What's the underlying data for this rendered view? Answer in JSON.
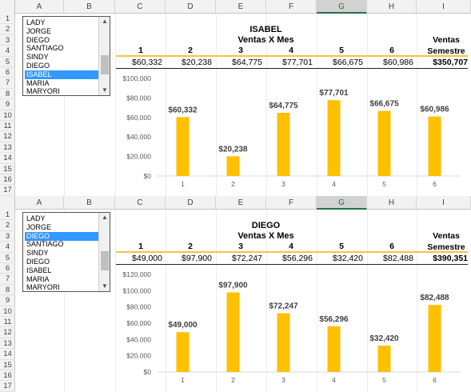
{
  "columns": [
    "A",
    "B",
    "C",
    "D",
    "E",
    "F",
    "G",
    "H",
    "I"
  ],
  "rows": [
    "1",
    "2",
    "3",
    "4",
    "5",
    "6",
    "7",
    "8",
    "9",
    "10",
    "11",
    "12",
    "13",
    "14",
    "15",
    "16",
    "17"
  ],
  "panels": [
    {
      "listbox": {
        "items": [
          "LADY",
          "JORGE",
          "DIEGO",
          "SANTIAGO",
          "SINDY",
          "DIEGO",
          "ISABEL",
          "MARIA",
          "MARYORI"
        ],
        "selected_index": 6
      },
      "title": "ISABEL",
      "subtitle": "Ventas X Mes",
      "months": [
        "1",
        "2",
        "3",
        "4",
        "5",
        "6"
      ],
      "values": [
        "$60,332",
        "$20,238",
        "$64,775",
        "$77,701",
        "$66,675",
        "$60,986"
      ],
      "total_label_line1": "Ventas",
      "total_label_line2": "Semestre",
      "total_value": "$350,707"
    },
    {
      "listbox": {
        "items": [
          "LADY",
          "JORGE",
          "DIEGO",
          "SANTIAGO",
          "SINDY",
          "DIEGO",
          "ISABEL",
          "MARIA",
          "MARYORI"
        ],
        "selected_index": 2
      },
      "title": "DIEGO",
      "subtitle": "Ventas X Mes",
      "months": [
        "1",
        "2",
        "3",
        "4",
        "5",
        "6"
      ],
      "values": [
        "$49,000",
        "$97,900",
        "$72,247",
        "$56,296",
        "$32,420",
        "$82,488"
      ],
      "total_label_line1": "Ventas",
      "total_label_line2": "Semestre",
      "total_value": "$390,351"
    }
  ],
  "chart_data": [
    {
      "type": "bar",
      "categories": [
        "1",
        "2",
        "3",
        "4",
        "5",
        "6"
      ],
      "values": [
        60332,
        20238,
        64775,
        77701,
        66675,
        60986
      ],
      "data_labels": [
        "$60,332",
        "$20,238",
        "$64,775",
        "$77,701",
        "$66,675",
        "$60,986"
      ],
      "ylim": [
        0,
        100000
      ],
      "yticks": [
        "$0",
        "$20,000",
        "$40,000",
        "$60,000",
        "$80,000",
        "$100,000"
      ],
      "bar_color": "#ffc000",
      "grid": false
    },
    {
      "type": "bar",
      "categories": [
        "1",
        "2",
        "3",
        "4",
        "5",
        "6"
      ],
      "values": [
        49000,
        97900,
        72247,
        56296,
        32420,
        82488
      ],
      "data_labels": [
        "$49,000",
        "$97,900",
        "$72,247",
        "$56,296",
        "$32,420",
        "$82,488"
      ],
      "ylim": [
        0,
        120000
      ],
      "yticks": [
        "$0",
        "$20,000",
        "$40,000",
        "$60,000",
        "$80,000",
        "$100,000",
        "$120,000"
      ],
      "bar_color": "#ffc000",
      "grid": false
    }
  ],
  "colors": {
    "header_bg": "#f2f2f2",
    "selected_col": "#217346",
    "listbox_select": "#3399ff",
    "gold_rule": "#f5c342"
  }
}
